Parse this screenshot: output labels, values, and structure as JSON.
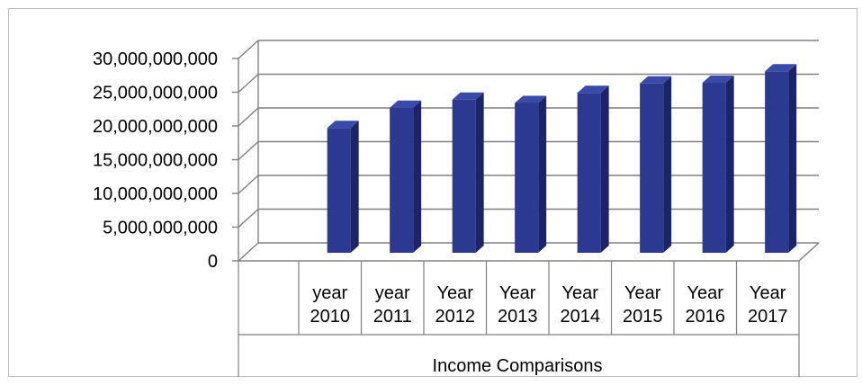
{
  "chart_data": {
    "type": "bar",
    "categories": [
      [
        "year",
        "2010"
      ],
      [
        "year",
        "2011"
      ],
      [
        "Year",
        "2012"
      ],
      [
        "Year",
        "2013"
      ],
      [
        "Year",
        "2014"
      ],
      [
        "Year",
        "2015"
      ],
      [
        "Year",
        "2016"
      ],
      [
        "Year",
        "2017"
      ]
    ],
    "values": [
      18500000000,
      21500000000,
      22700000000,
      22200000000,
      23700000000,
      25100000000,
      25200000000,
      26900000000
    ],
    "group_label": "Income Comparisons",
    "yticks": [
      "0",
      "5,000,000,000",
      "10,000,000,000",
      "15,000,000,000",
      "20,000,000,000",
      "25,000,000,000",
      "30,000,000,000"
    ],
    "ylim": [
      0,
      30000000000
    ],
    "grid": true,
    "style": "3d-column",
    "colors": {
      "bar_front": "#2b3990",
      "bar_side": "#1a2466",
      "bar_top": "#3a4aa8",
      "grid": "#808080"
    }
  }
}
